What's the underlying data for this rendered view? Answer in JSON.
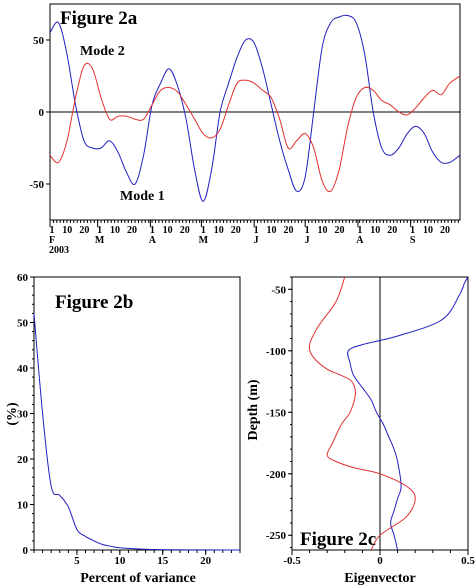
{
  "chart_data": [
    {
      "id": "a",
      "type": "line",
      "title": "Figure 2a",
      "xlabel": "",
      "ylabel": "",
      "ylim": [
        -75,
        75
      ],
      "ytick_values": [
        -50,
        0,
        50
      ],
      "ytick_labels": [
        "-50",
        "0",
        "50"
      ],
      "x_unit_note": "x values are days counted from Feb 1, 2003",
      "xlim": [
        0,
        241
      ],
      "month_ticks": [
        {
          "day": 0,
          "label": "F"
        },
        {
          "day": 28,
          "label": "M"
        },
        {
          "day": 59,
          "label": "A"
        },
        {
          "day": 89,
          "label": "M"
        },
        {
          "day": 120,
          "label": "J"
        },
        {
          "day": 150,
          "label": "J"
        },
        {
          "day": 181,
          "label": "A"
        },
        {
          "day": 212,
          "label": "S"
        }
      ],
      "year_label": "2003",
      "day_tick_labels": [
        "1",
        "10",
        "20"
      ],
      "annotations": [
        "Mode 1",
        "Mode 2"
      ],
      "series": [
        {
          "name": "Mode 1",
          "color": "#2020c0",
          "x": [
            0,
            5,
            10,
            15,
            20,
            25,
            30,
            35,
            40,
            45,
            50,
            55,
            60,
            65,
            70,
            75,
            80,
            85,
            90,
            95,
            100,
            105,
            110,
            115,
            120,
            125,
            130,
            135,
            140,
            145,
            150,
            155,
            160,
            165,
            170,
            175,
            180,
            185,
            190,
            195,
            200,
            205,
            210,
            215,
            220,
            225,
            230,
            235,
            241
          ],
          "values": [
            55,
            62,
            40,
            5,
            -20,
            -25,
            -25,
            -20,
            -28,
            -42,
            -50,
            -30,
            5,
            20,
            30,
            18,
            -5,
            -40,
            -62,
            -40,
            0,
            20,
            38,
            50,
            48,
            30,
            5,
            -20,
            -40,
            -55,
            -45,
            0,
            45,
            62,
            66,
            67,
            62,
            40,
            0,
            -25,
            -30,
            -25,
            -15,
            -10,
            -15,
            -28,
            -35,
            -35,
            -30
          ]
        },
        {
          "name": "Mode 2",
          "color": "#e03030",
          "x": [
            0,
            5,
            10,
            15,
            20,
            25,
            30,
            35,
            40,
            45,
            50,
            55,
            60,
            65,
            70,
            75,
            80,
            85,
            90,
            95,
            100,
            105,
            110,
            115,
            120,
            125,
            130,
            135,
            140,
            145,
            150,
            155,
            160,
            165,
            170,
            175,
            180,
            185,
            190,
            195,
            200,
            205,
            210,
            215,
            220,
            225,
            230,
            235,
            241
          ],
          "values": [
            -30,
            -35,
            -20,
            10,
            32,
            30,
            10,
            -5,
            -3,
            -3,
            -5,
            -5,
            5,
            15,
            17,
            14,
            5,
            -5,
            -15,
            -18,
            -12,
            5,
            20,
            22,
            20,
            15,
            10,
            -5,
            -25,
            -20,
            -15,
            -25,
            -48,
            -55,
            -40,
            -10,
            10,
            17,
            15,
            8,
            5,
            0,
            -2,
            3,
            10,
            15,
            12,
            20,
            25
          ]
        }
      ]
    },
    {
      "id": "b",
      "type": "line",
      "title": "Figure 2b",
      "xlabel": "Percent of variance",
      "ylabel": "(%)",
      "xlim": [
        0,
        24
      ],
      "ylim": [
        0,
        60
      ],
      "xtick_values": [
        5,
        10,
        15,
        20
      ],
      "ytick_values": [
        0,
        10,
        20,
        30,
        40,
        50,
        60
      ],
      "series": [
        {
          "name": "",
          "color": "#2020c0",
          "x": [
            0,
            1,
            2,
            3,
            4,
            5,
            6,
            7,
            8,
            9,
            10,
            12,
            14,
            16,
            18,
            20,
            22,
            24
          ],
          "values": [
            52,
            30,
            14,
            12,
            9.5,
            4.5,
            3,
            2,
            1.2,
            0.8,
            0.5,
            0.25,
            0.12,
            0.06,
            0.03,
            0.02,
            0.01,
            0.01
          ]
        }
      ]
    },
    {
      "id": "c",
      "type": "line",
      "title": "Figure 2c",
      "xlabel": "Eigenvector",
      "ylabel": "Depth (m)",
      "xlim": [
        -0.5,
        0.5
      ],
      "ylim": [
        -262,
        -40
      ],
      "xtick_values": [
        -0.5,
        0,
        0.5
      ],
      "xtick_labels": [
        "-0.5",
        "0",
        "0.5"
      ],
      "ytick_values": [
        -50,
        -100,
        -150,
        -200,
        -250
      ],
      "ytick_labels": [
        "-50",
        "-100",
        "-150",
        "-200",
        "-250"
      ],
      "zero_line": 0,
      "series": [
        {
          "name": "",
          "color": "#2020c0",
          "x": [
            0.5,
            0.48,
            0.45,
            0.35,
            0.1,
            -0.1,
            -0.18,
            -0.17,
            -0.15,
            -0.1,
            -0.05,
            -0.02,
            0.02,
            0.05,
            0.08,
            0.1,
            0.12,
            0.1,
            0.08,
            0.06,
            0.08,
            0.1
          ],
          "y": [
            -40,
            -45,
            -55,
            -75,
            -88,
            -95,
            -100,
            -110,
            -120,
            -130,
            -140,
            -150,
            -160,
            -170,
            -180,
            -190,
            -210,
            -220,
            -230,
            -240,
            -250,
            -262
          ]
        },
        {
          "name": "",
          "color": "#e03030",
          "x": [
            -0.2,
            -0.25,
            -0.35,
            -0.4,
            -0.38,
            -0.3,
            -0.22,
            -0.16,
            -0.14,
            -0.17,
            -0.22,
            -0.27,
            -0.3,
            -0.25,
            -0.15,
            0.0,
            0.15,
            0.2,
            0.15,
            0.0,
            -0.05
          ],
          "y": [
            -40,
            -60,
            -80,
            -95,
            -105,
            -115,
            -120,
            -125,
            -135,
            -150,
            -160,
            -175,
            -185,
            -190,
            -195,
            -200,
            -210,
            -220,
            -235,
            -250,
            -262
          ]
        }
      ]
    }
  ]
}
